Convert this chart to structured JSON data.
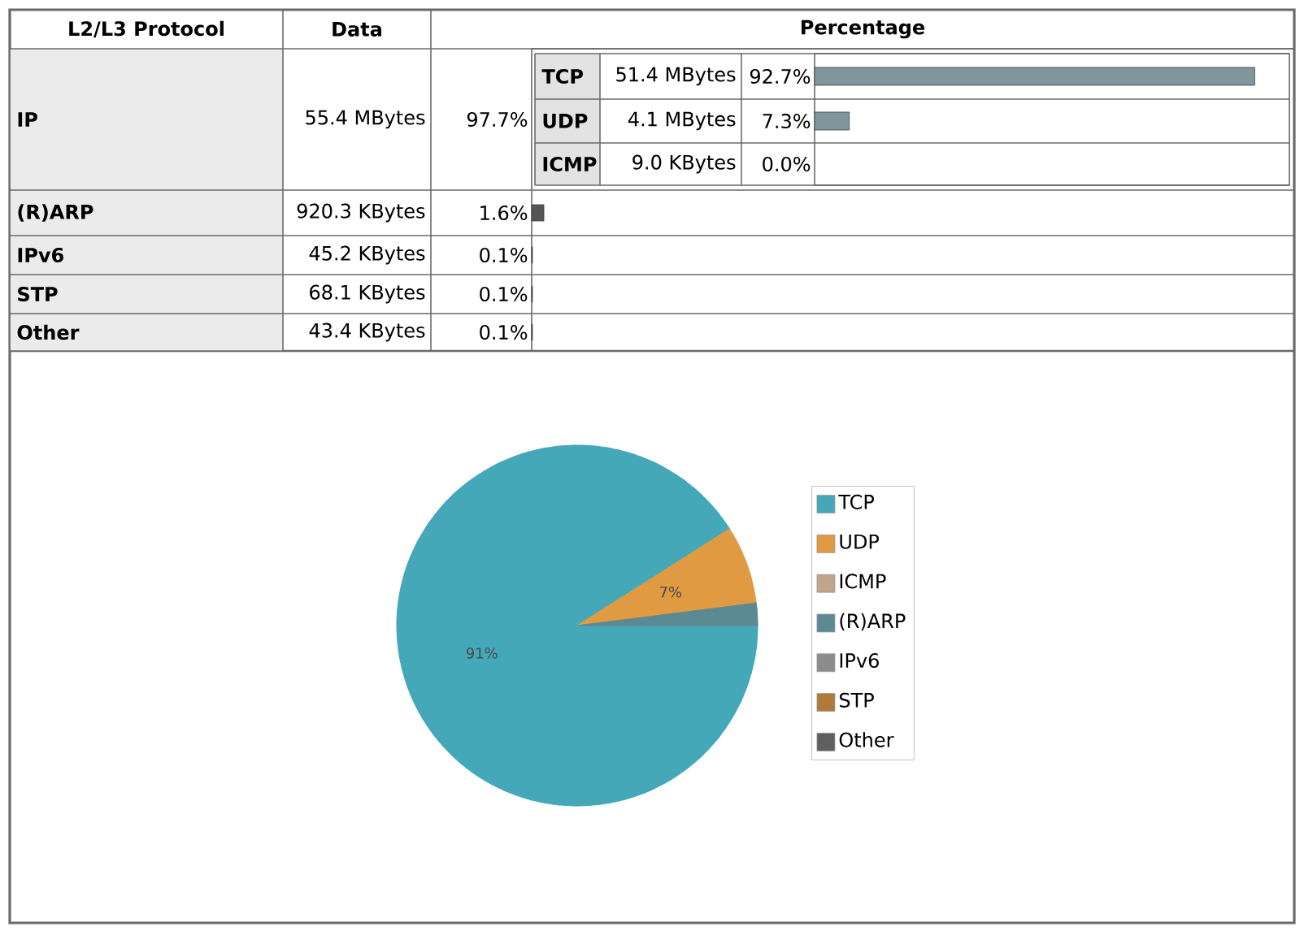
{
  "chart_data": [
    {
      "type": "bar",
      "orientation": "horizontal",
      "ylabel": "L2/L3 Protocol",
      "xlabel": "Percentage",
      "categories": [
        "IP",
        "(R)ARP",
        "IPv6",
        "STP",
        "Other"
      ],
      "values": [
        null,
        1.6,
        0.1,
        0.1,
        0.1
      ],
      "value_labels": [
        "97.7%",
        "1.6%",
        "0.1%",
        "0.1%",
        "0.1%"
      ],
      "annotations": [
        "Data",
        "55.4 MBytes",
        "920.3 KBytes",
        "45.2 KBytes",
        "68.1 KBytes",
        "43.4 KBytes"
      ],
      "color": "#555555",
      "xlim": [
        0,
        100
      ]
    },
    {
      "type": "bar",
      "orientation": "horizontal",
      "categories": [
        "TCP",
        "UDP",
        "ICMP"
      ],
      "values": [
        92.7,
        7.3,
        0.0
      ],
      "value_labels": [
        "92.7%",
        "7.3%",
        "0.0%"
      ],
      "annotations": [
        "51.4 MBytes",
        "4.1 MBytes",
        "9.0 KBytes"
      ],
      "color": "#7f969c",
      "xlim": [
        0,
        100
      ]
    },
    {
      "type": "pie",
      "categories": [
        "TCP",
        "UDP",
        "ICMP",
        "(R)ARP",
        "IPv6",
        "STP",
        "Other"
      ],
      "values": [
        91,
        7,
        0,
        2,
        0,
        0,
        0
      ],
      "colors": [
        "#45a8b9",
        "#e09a42",
        "#c0a58a",
        "#5b8a93",
        "#8c8c8c",
        "#b27a3a",
        "#5f5f5f"
      ],
      "value_labels": [
        "91%",
        "7%",
        null,
        null,
        null,
        null,
        null
      ],
      "legend": "right"
    }
  ]
}
